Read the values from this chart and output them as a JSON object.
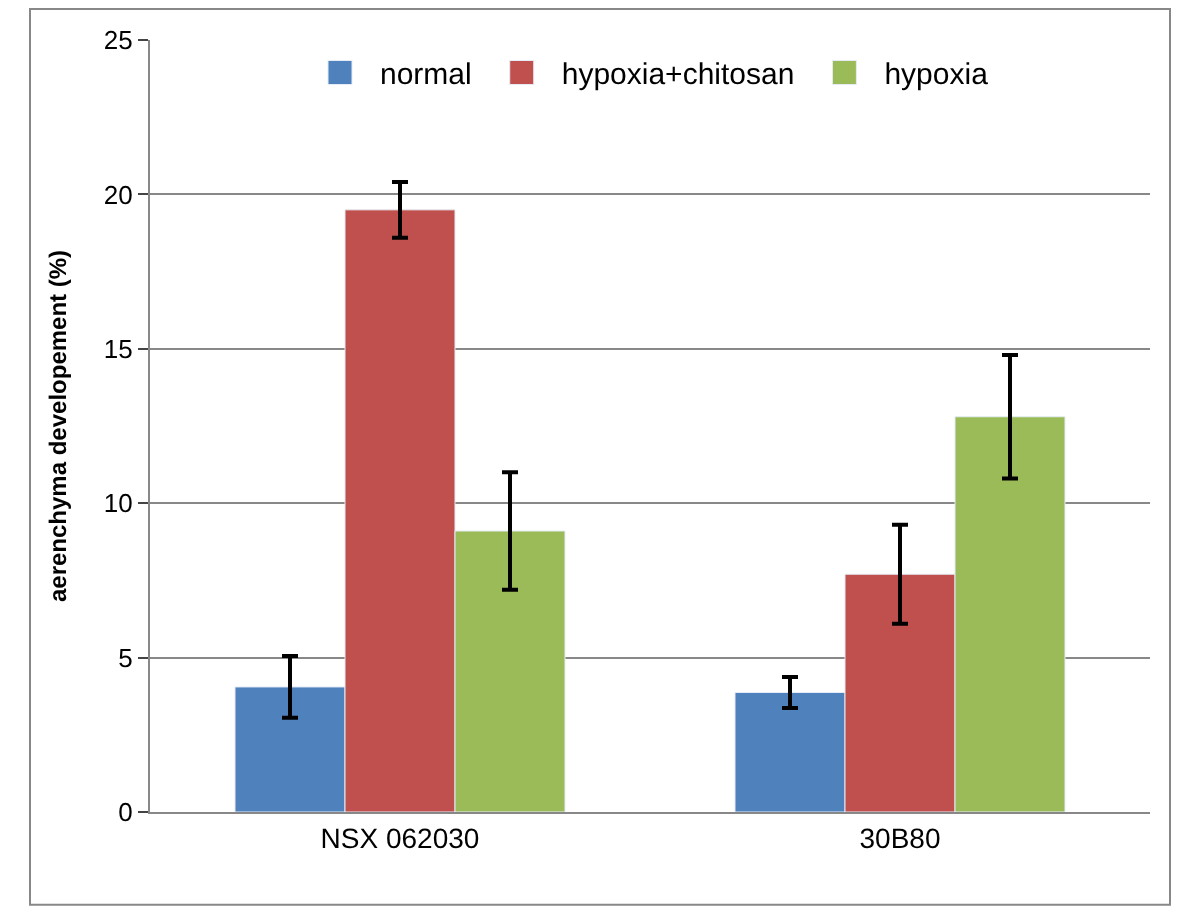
{
  "chart_data": {
    "type": "bar",
    "ylabel": "aerenchyma developement (%)",
    "categories": [
      "NSX 062030",
      "30B80"
    ],
    "series": [
      {
        "name": "normal",
        "color": "#4f81bd",
        "values": [
          4.05,
          3.87
        ],
        "errors": [
          1.0,
          0.5
        ]
      },
      {
        "name": "hypoxia+chitosan",
        "color": "#c0504d",
        "values": [
          19.5,
          7.7
        ],
        "errors": [
          0.9,
          1.6
        ]
      },
      {
        "name": "hypoxia",
        "color": "#9bbb59",
        "values": [
          9.1,
          12.8
        ],
        "errors": [
          1.9,
          2.0
        ]
      }
    ],
    "ylim": [
      0,
      25
    ],
    "yticks": [
      0,
      5,
      10,
      15,
      20,
      25
    ],
    "grid": "y",
    "legend": "top"
  }
}
